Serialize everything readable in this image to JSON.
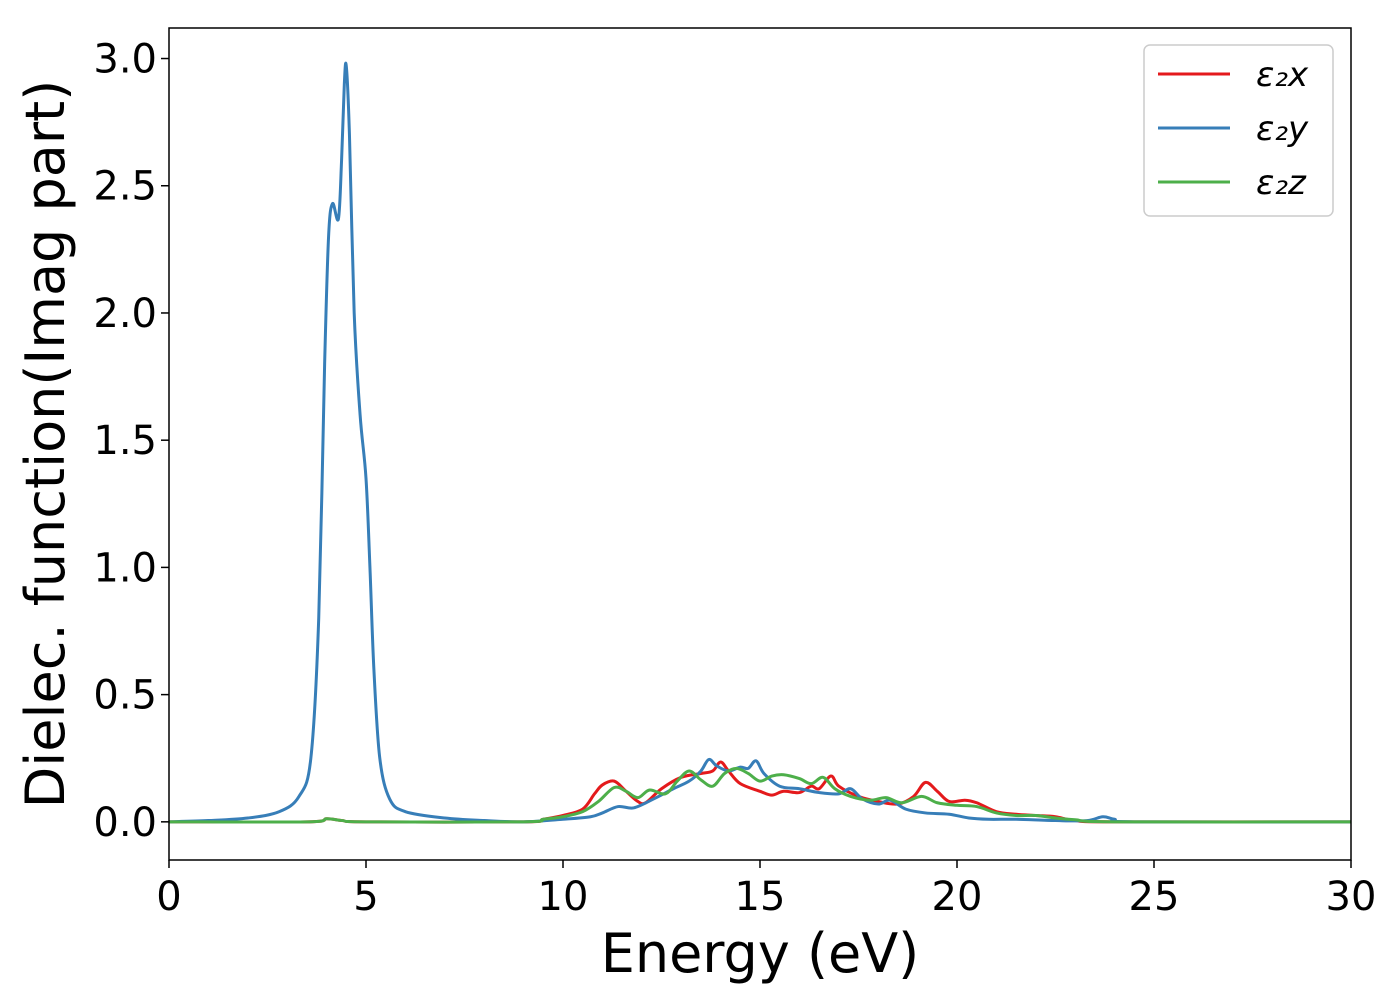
{
  "chart_data": {
    "type": "line",
    "xlabel": "Energy (eV)",
    "ylabel": "Dielec. function(Imag part)",
    "xlim": [
      0,
      30
    ],
    "ylim": [
      -0.15,
      3.12
    ],
    "xticks": [
      0,
      5,
      10,
      15,
      20,
      25,
      30
    ],
    "xtick_labels": [
      "0",
      "5",
      "10",
      "15",
      "20",
      "25",
      "30"
    ],
    "yticks": [
      0.0,
      0.5,
      1.0,
      1.5,
      2.0,
      2.5,
      3.0
    ],
    "ytick_labels": [
      "0.0",
      "0.5",
      "1.0",
      "1.5",
      "2.0",
      "2.5",
      "3.0"
    ],
    "grid": false,
    "legend_position": "top-right",
    "series": [
      {
        "name": "ε₂x",
        "color": "#e41a1c",
        "points": [
          [
            0,
            0
          ],
          [
            3.5,
            0
          ],
          [
            4.0,
            0.012
          ],
          [
            4.4,
            0.005
          ],
          [
            5.0,
            0
          ],
          [
            9.0,
            0
          ],
          [
            9.5,
            0.01
          ],
          [
            10,
            0.025
          ],
          [
            10.5,
            0.05
          ],
          [
            10.8,
            0.11
          ],
          [
            11.0,
            0.145
          ],
          [
            11.3,
            0.16
          ],
          [
            11.6,
            0.12
          ],
          [
            11.9,
            0.08
          ],
          [
            12.1,
            0.075
          ],
          [
            12.5,
            0.13
          ],
          [
            13.0,
            0.175
          ],
          [
            13.5,
            0.19
          ],
          [
            13.8,
            0.2
          ],
          [
            14.0,
            0.235
          ],
          [
            14.2,
            0.2
          ],
          [
            14.5,
            0.15
          ],
          [
            15.0,
            0.12
          ],
          [
            15.3,
            0.105
          ],
          [
            15.6,
            0.12
          ],
          [
            16.0,
            0.115
          ],
          [
            16.3,
            0.14
          ],
          [
            16.5,
            0.13
          ],
          [
            16.8,
            0.18
          ],
          [
            17.0,
            0.14
          ],
          [
            17.5,
            0.1
          ],
          [
            18.0,
            0.08
          ],
          [
            18.5,
            0.07
          ],
          [
            18.9,
            0.1
          ],
          [
            19.2,
            0.155
          ],
          [
            19.5,
            0.12
          ],
          [
            19.8,
            0.08
          ],
          [
            20.2,
            0.085
          ],
          [
            20.5,
            0.075
          ],
          [
            21.0,
            0.04
          ],
          [
            21.5,
            0.03
          ],
          [
            22.0,
            0.025
          ],
          [
            22.5,
            0.02
          ],
          [
            23.0,
            0.005
          ],
          [
            24,
            0
          ],
          [
            30,
            0
          ]
        ]
      },
      {
        "name": "ε₂y",
        "color": "#377eb8",
        "points": [
          [
            0,
            0
          ],
          [
            1.0,
            0.005
          ],
          [
            2.0,
            0.015
          ],
          [
            2.8,
            0.04
          ],
          [
            3.3,
            0.1
          ],
          [
            3.6,
            0.25
          ],
          [
            3.8,
            0.8
          ],
          [
            3.95,
            1.8
          ],
          [
            4.05,
            2.3
          ],
          [
            4.15,
            2.43
          ],
          [
            4.3,
            2.37
          ],
          [
            4.38,
            2.6
          ],
          [
            4.45,
            2.9
          ],
          [
            4.5,
            2.97
          ],
          [
            4.58,
            2.7
          ],
          [
            4.7,
            2.0
          ],
          [
            4.85,
            1.6
          ],
          [
            5.0,
            1.35
          ],
          [
            5.1,
            1.0
          ],
          [
            5.2,
            0.6
          ],
          [
            5.35,
            0.25
          ],
          [
            5.6,
            0.09
          ],
          [
            6.0,
            0.04
          ],
          [
            7.0,
            0.015
          ],
          [
            8.0,
            0.005
          ],
          [
            9.0,
            0
          ],
          [
            10.0,
            0.01
          ],
          [
            10.7,
            0.02
          ],
          [
            11.0,
            0.035
          ],
          [
            11.4,
            0.06
          ],
          [
            11.8,
            0.055
          ],
          [
            12.3,
            0.09
          ],
          [
            12.8,
            0.13
          ],
          [
            13.2,
            0.16
          ],
          [
            13.5,
            0.2
          ],
          [
            13.7,
            0.245
          ],
          [
            13.9,
            0.22
          ],
          [
            14.2,
            0.2
          ],
          [
            14.5,
            0.215
          ],
          [
            14.7,
            0.21
          ],
          [
            14.9,
            0.24
          ],
          [
            15.1,
            0.19
          ],
          [
            15.5,
            0.14
          ],
          [
            16.0,
            0.13
          ],
          [
            16.5,
            0.115
          ],
          [
            17.0,
            0.11
          ],
          [
            17.3,
            0.13
          ],
          [
            17.6,
            0.09
          ],
          [
            18.0,
            0.07
          ],
          [
            18.3,
            0.085
          ],
          [
            18.7,
            0.05
          ],
          [
            19.2,
            0.035
          ],
          [
            19.8,
            0.03
          ],
          [
            20.3,
            0.015
          ],
          [
            20.8,
            0.01
          ],
          [
            21.5,
            0.01
          ],
          [
            22.5,
            0.005
          ],
          [
            23.3,
            0.005
          ],
          [
            23.7,
            0.02
          ],
          [
            24.0,
            0.01
          ],
          [
            24.5,
            0
          ],
          [
            30,
            0
          ]
        ]
      },
      {
        "name": "ε₂z",
        "color": "#4daf4a",
        "points": [
          [
            0,
            0
          ],
          [
            3.5,
            0
          ],
          [
            4.0,
            0.012
          ],
          [
            4.4,
            0.005
          ],
          [
            5.0,
            0
          ],
          [
            9.0,
            0
          ],
          [
            9.5,
            0.01
          ],
          [
            10,
            0.02
          ],
          [
            10.5,
            0.04
          ],
          [
            10.9,
            0.08
          ],
          [
            11.3,
            0.135
          ],
          [
            11.6,
            0.12
          ],
          [
            11.9,
            0.095
          ],
          [
            12.2,
            0.125
          ],
          [
            12.6,
            0.11
          ],
          [
            12.9,
            0.16
          ],
          [
            13.2,
            0.2
          ],
          [
            13.5,
            0.165
          ],
          [
            13.8,
            0.14
          ],
          [
            14.1,
            0.19
          ],
          [
            14.4,
            0.21
          ],
          [
            14.7,
            0.19
          ],
          [
            15.0,
            0.16
          ],
          [
            15.3,
            0.18
          ],
          [
            15.6,
            0.185
          ],
          [
            16.0,
            0.17
          ],
          [
            16.3,
            0.15
          ],
          [
            16.6,
            0.175
          ],
          [
            16.9,
            0.13
          ],
          [
            17.3,
            0.1
          ],
          [
            17.8,
            0.085
          ],
          [
            18.2,
            0.095
          ],
          [
            18.6,
            0.075
          ],
          [
            19.1,
            0.1
          ],
          [
            19.5,
            0.075
          ],
          [
            20.0,
            0.065
          ],
          [
            20.5,
            0.06
          ],
          [
            21.0,
            0.035
          ],
          [
            21.5,
            0.025
          ],
          [
            22.0,
            0.025
          ],
          [
            22.5,
            0.015
          ],
          [
            23.0,
            0.008
          ],
          [
            24,
            0
          ],
          [
            30,
            0
          ]
        ]
      }
    ]
  }
}
